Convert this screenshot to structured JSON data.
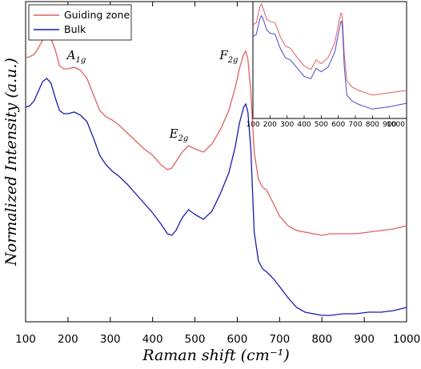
{
  "chart_data": {
    "type": "line",
    "xlabel": "Raman shift (cm⁻¹)",
    "ylabel": "Normalized Intensity (a.u.)",
    "xlim": [
      100,
      1000
    ],
    "ylim": [
      0,
      1
    ],
    "xticks": [
      "100",
      "200",
      "300",
      "400",
      "500",
      "600",
      "700",
      "800",
      "900",
      "1000"
    ],
    "yticks": [],
    "grid": false,
    "legend": {
      "placement": "top-left"
    },
    "series": [
      {
        "name": "Guiding zone",
        "color": "#e06060",
        "x": [
          100,
          110,
          120,
          130,
          140,
          150,
          160,
          170,
          180,
          190,
          200,
          215,
          230,
          245,
          260,
          275,
          290,
          305,
          320,
          340,
          360,
          380,
          400,
          420,
          435,
          445,
          455,
          470,
          485,
          500,
          520,
          540,
          560,
          580,
          595,
          605,
          615,
          620,
          625,
          632,
          640,
          650,
          660,
          670,
          685,
          700,
          720,
          740,
          760,
          780,
          800,
          820,
          850,
          880,
          910,
          940,
          970,
          1000
        ],
        "y": [
          0.825,
          0.828,
          0.835,
          0.855,
          0.88,
          0.895,
          0.885,
          0.85,
          0.8,
          0.79,
          0.79,
          0.795,
          0.785,
          0.76,
          0.71,
          0.66,
          0.64,
          0.63,
          0.615,
          0.59,
          0.565,
          0.54,
          0.52,
          0.49,
          0.475,
          0.48,
          0.5,
          0.53,
          0.55,
          0.54,
          0.53,
          0.555,
          0.6,
          0.66,
          0.73,
          0.79,
          0.835,
          0.845,
          0.82,
          0.72,
          0.53,
          0.445,
          0.42,
          0.41,
          0.37,
          0.33,
          0.3,
          0.285,
          0.28,
          0.275,
          0.27,
          0.275,
          0.275,
          0.275,
          0.28,
          0.285,
          0.29,
          0.3
        ]
      },
      {
        "name": "Bulk",
        "color": "#1a1ab0",
        "x": [
          100,
          110,
          120,
          130,
          140,
          150,
          160,
          170,
          180,
          190,
          200,
          215,
          230,
          245,
          260,
          275,
          290,
          305,
          320,
          340,
          360,
          380,
          400,
          420,
          435,
          445,
          455,
          470,
          485,
          500,
          520,
          540,
          560,
          580,
          595,
          605,
          615,
          620,
          625,
          632,
          640,
          650,
          660,
          670,
          685,
          700,
          720,
          740,
          760,
          780,
          800,
          820,
          850,
          880,
          910,
          940,
          970,
          1000
        ],
        "y": [
          0.67,
          0.675,
          0.69,
          0.72,
          0.75,
          0.76,
          0.745,
          0.7,
          0.66,
          0.65,
          0.65,
          0.655,
          0.645,
          0.625,
          0.575,
          0.52,
          0.49,
          0.47,
          0.455,
          0.43,
          0.4,
          0.37,
          0.34,
          0.305,
          0.275,
          0.27,
          0.285,
          0.325,
          0.35,
          0.335,
          0.32,
          0.345,
          0.4,
          0.465,
          0.545,
          0.62,
          0.67,
          0.68,
          0.655,
          0.54,
          0.28,
          0.19,
          0.165,
          0.155,
          0.135,
          0.11,
          0.075,
          0.045,
          0.03,
          0.025,
          0.02,
          0.02,
          0.025,
          0.025,
          0.03,
          0.03,
          0.035,
          0.045
        ]
      }
    ],
    "annotations": [
      {
        "symbol": "A",
        "subscript": "1g",
        "x": 220,
        "y": 0.82
      },
      {
        "symbol": "E",
        "subscript": "2g",
        "x": 462,
        "y": 0.575
      },
      {
        "symbol": "F",
        "subscript": "2g",
        "x": 580,
        "y": 0.82
      }
    ],
    "inset": {
      "placement": "top-right",
      "xlim": [
        100,
        1000
      ],
      "xticks": [
        "100",
        "200",
        "300",
        "400",
        "500",
        "600",
        "700",
        "800",
        "900",
        "1000"
      ],
      "series": [
        {
          "name": "Guiding zone",
          "color": "#e06060",
          "x": [
            100,
            120,
            140,
            150,
            160,
            180,
            200,
            230,
            260,
            290,
            320,
            360,
            400,
            440,
            470,
            500,
            540,
            580,
            605,
            615,
            620,
            625,
            635,
            650,
            680,
            720,
            800,
            900,
            1000
          ],
          "y": [
            0.8,
            0.82,
            0.95,
            0.98,
            0.94,
            0.85,
            0.83,
            0.82,
            0.7,
            0.62,
            0.6,
            0.52,
            0.45,
            0.42,
            0.5,
            0.47,
            0.52,
            0.65,
            0.84,
            0.9,
            0.9,
            0.83,
            0.55,
            0.32,
            0.27,
            0.24,
            0.2,
            0.22,
            0.24
          ]
        },
        {
          "name": "Bulk",
          "color": "#4a4ad0",
          "x": [
            100,
            120,
            140,
            150,
            160,
            180,
            200,
            230,
            260,
            290,
            320,
            360,
            400,
            440,
            470,
            500,
            540,
            580,
            605,
            615,
            620,
            625,
            635,
            650,
            680,
            720,
            800,
            900,
            1000
          ],
          "y": [
            0.7,
            0.72,
            0.85,
            0.88,
            0.85,
            0.76,
            0.73,
            0.72,
            0.6,
            0.52,
            0.5,
            0.43,
            0.36,
            0.34,
            0.43,
            0.4,
            0.44,
            0.57,
            0.76,
            0.83,
            0.83,
            0.76,
            0.45,
            0.2,
            0.15,
            0.12,
            0.08,
            0.1,
            0.13
          ]
        }
      ]
    }
  }
}
